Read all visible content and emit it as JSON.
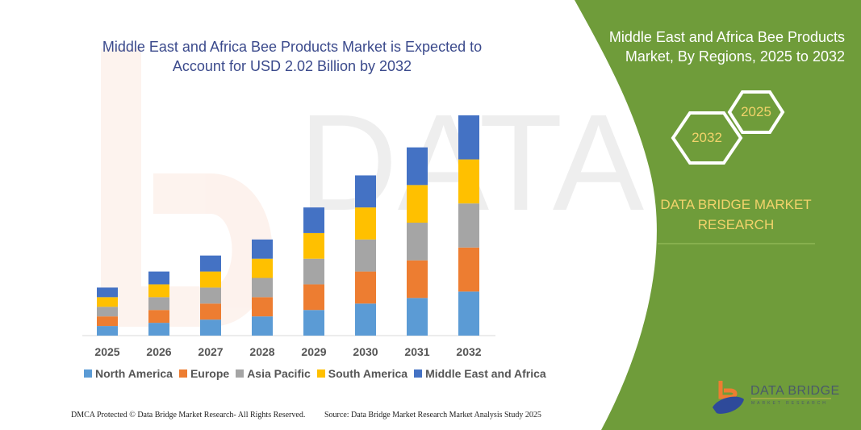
{
  "header": {
    "title": "Middle East and Africa Bee Products Market is Expected to Account for USD 2.02 Billion by 2032",
    "side_title": "Middle East and Africa Bee Products Market, By Regions, 2025 to 2032",
    "hex_start": "2025",
    "hex_end": "2032",
    "brand": "DATA BRIDGE MARKET RESEARCH"
  },
  "logo": {
    "name": "DATA BRIDGE",
    "sub": "MARKET RESEARCH"
  },
  "footer": {
    "left": "DMCA Protected © Data Bridge Market Research-  All Rights Reserved.",
    "right": "Source: Data Bridge Market Research  Market Analysis Study 2025"
  },
  "colors": {
    "panel": "#6f9c3a",
    "title": "#3b4a8c",
    "accent_text": "#f2d36b"
  },
  "chart_data": {
    "type": "bar",
    "stacked": true,
    "title": "Middle East and Africa Bee Products Market is Expected to Account for USD 2.02 Billion by 2032",
    "xlabel": "",
    "ylabel": "",
    "y_axis_shown": false,
    "grid": false,
    "legend_position": "bottom",
    "categories": [
      "2025",
      "2026",
      "2027",
      "2028",
      "2029",
      "2030",
      "2031",
      "2032"
    ],
    "series": [
      {
        "name": "North America",
        "color": "#5b9bd5",
        "values": [
          12,
          16,
          20,
          24,
          32,
          40,
          47,
          55
        ]
      },
      {
        "name": "Europe",
        "color": "#ed7d31",
        "values": [
          12,
          16,
          20,
          24,
          32,
          40,
          47,
          55
        ]
      },
      {
        "name": "Asia Pacific",
        "color": "#a5a5a5",
        "values": [
          12,
          16,
          20,
          24,
          32,
          40,
          47,
          55
        ]
      },
      {
        "name": "South America",
        "color": "#ffc000",
        "values": [
          12,
          16,
          20,
          24,
          32,
          40,
          47,
          55
        ]
      },
      {
        "name": "Middle East and Africa",
        "color": "#4472c4",
        "values": [
          12,
          16,
          20,
          24,
          32,
          40,
          47,
          55
        ]
      }
    ],
    "ylim": [
      0,
      280
    ]
  }
}
